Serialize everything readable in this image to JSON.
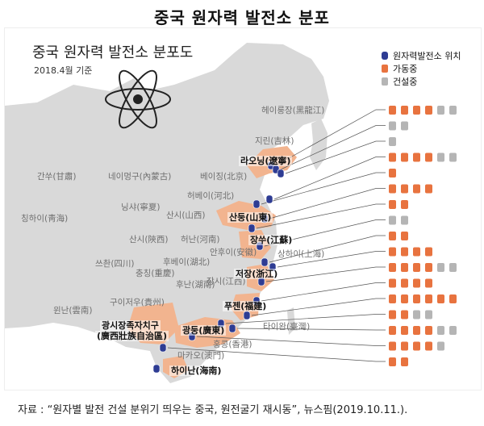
{
  "title": "중국 원자력 발전소 분포",
  "map": {
    "title": "중국 원자력 발전소 분포도",
    "date": "2018.4월 기준",
    "colors": {
      "site": "#2e3c93",
      "operating": "#e8733f",
      "construction": "#b5b5b5",
      "coastal_region": "#f2b48f",
      "land": "#d9d9d9"
    },
    "legend": [
      {
        "label": "원자력발전소 위치",
        "icon": "plant-location-icon"
      },
      {
        "label": "가동중",
        "icon": "operating-reactor-icon"
      },
      {
        "label": "건설중",
        "icon": "construction-reactor-icon"
      }
    ],
    "province_labels": [
      "헤이룽장(黑龍江)",
      "지린(吉林)",
      "간쑤(甘肅)",
      "네이멍구(內蒙古)",
      "베이징(北京)",
      "허베이(河北)",
      "닝샤(寧夏)",
      "산시(山西)",
      "칭하이(靑海)",
      "산시(陝西)",
      "허난(河南)",
      "안후이(安徽)",
      "쓰촨(四川)",
      "후베이(湖北)",
      "충칭(重慶)",
      "후난(湖南)",
      "장시(江西)",
      "구이저우(貴州)",
      "윈난(雲南)",
      "상하이(上海)",
      "타이완(臺灣)",
      "홍콩(香港)",
      "마카오(澳門)"
    ],
    "coastal_labels": [
      "라오닝(遼寧)",
      "산둥(山東)",
      "장쑤(江蘇)",
      "저장(浙江)",
      "푸젠(福建)",
      "광시장족자치구",
      "(廣西壯族自治區)",
      "광둥(廣東)",
      "하이난(海南)"
    ],
    "reactor_rows": [
      {
        "operating": 4,
        "construction": 2
      },
      {
        "operating": 0,
        "construction": 2
      },
      {
        "operating": 0,
        "construction": 1
      },
      {
        "operating": 4,
        "construction": 2
      },
      {
        "operating": 1,
        "construction": 0
      },
      {
        "operating": 4,
        "construction": 0
      },
      {
        "operating": 2,
        "construction": 0
      },
      {
        "operating": 0,
        "construction": 2
      },
      {
        "operating": 2,
        "construction": 0
      },
      {
        "operating": 4,
        "construction": 0
      },
      {
        "operating": 4,
        "construction": 2
      },
      {
        "operating": 4,
        "construction": 0
      },
      {
        "operating": 6,
        "construction": 0
      },
      {
        "operating": 2,
        "construction": 2
      },
      {
        "operating": 4,
        "construction": 2
      },
      {
        "operating": 4,
        "construction": 1
      },
      {
        "operating": 2,
        "construction": 0
      }
    ]
  },
  "source": "자료 : “원자별 발전 건설 분위기 띄우는 중국, 원전굴기 재시동”, 뉴스핌(2019.10.11.)."
}
